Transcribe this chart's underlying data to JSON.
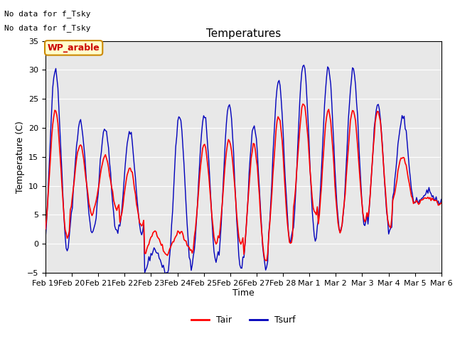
{
  "title": "Temperatures",
  "xlabel": "Time",
  "ylabel": "Temperature (C)",
  "ylim": [
    -5,
    35
  ],
  "yticks": [
    -5,
    0,
    5,
    10,
    15,
    20,
    25,
    30,
    35
  ],
  "xtick_labels": [
    "Feb 19",
    "Feb 20",
    "Feb 21",
    "Feb 22",
    "Feb 23",
    "Feb 24",
    "Feb 25",
    "Feb 26",
    "Feb 27",
    "Feb 28",
    "Mar 1",
    "Mar 2",
    "Mar 3",
    "Mar 4",
    "Mar 5",
    "Mar 6"
  ],
  "tair_color": "#ff0000",
  "tsurf_color": "#0000bb",
  "bg_color": "#e8e8e8",
  "fig_bg": "#ffffff",
  "no_data_text_1": "No data for f_Tsky",
  "no_data_text_2": "No data for f_Tsky",
  "wp_label": "WP_arable",
  "legend_labels": [
    "Tair",
    "Tsurf"
  ],
  "title_fontsize": 11,
  "axis_label_fontsize": 9,
  "tick_fontsize": 8,
  "nodata_fontsize": 8,
  "wp_fontsize": 9,
  "legend_fontsize": 9,
  "daily_peaks_tair": [
    23,
    17,
    15,
    13,
    2,
    2,
    17,
    18,
    17,
    22,
    24,
    23,
    23,
    23,
    15,
    8
  ],
  "daily_peaks_tsurf": [
    30,
    21,
    20,
    19,
    -1,
    22,
    22,
    24,
    20,
    28,
    31,
    30,
    30,
    24,
    22,
    9
  ],
  "daily_mins_tair": [
    1,
    5,
    6,
    3,
    -2,
    -1,
    0,
    0,
    -3,
    0,
    5,
    2,
    4,
    3,
    7,
    7
  ],
  "daily_mins_tsurf": [
    -1,
    2,
    2,
    2,
    -5,
    -4,
    -3,
    -4,
    -4,
    0,
    1,
    2,
    3,
    2,
    7,
    7
  ]
}
